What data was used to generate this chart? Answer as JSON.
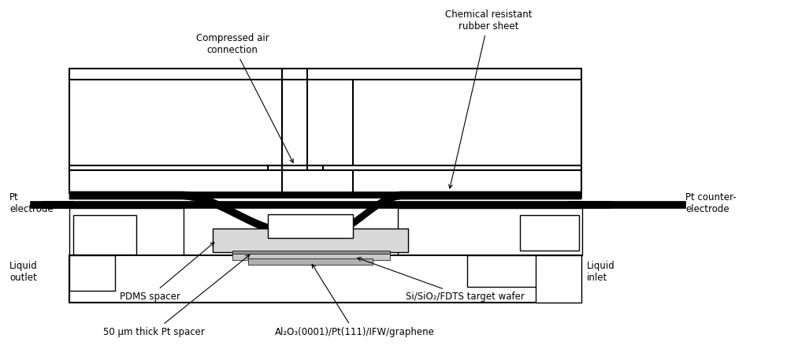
{
  "bg_color": "#ffffff",
  "annotations": {
    "compressed_air": "Compressed air\nconnection",
    "chemical_resistant": "Chemical resistant\nrubber sheet",
    "pt_electrode": "Pt\nelectrode",
    "pt_counter": "Pt counter-\nelectrode",
    "liquid_outlet": "Liquid\noutlet",
    "liquid_inlet": "Liquid\ninlet",
    "pdms_spacer": "PDMS spacer",
    "pt_spacer": "50 μm thick Pt spacer",
    "sio2_wafer": "Si/SiO₂/FDTS target wafer",
    "al2o3": "Al₂O₃(0001)/Pt(111)/IFW/graphene"
  }
}
